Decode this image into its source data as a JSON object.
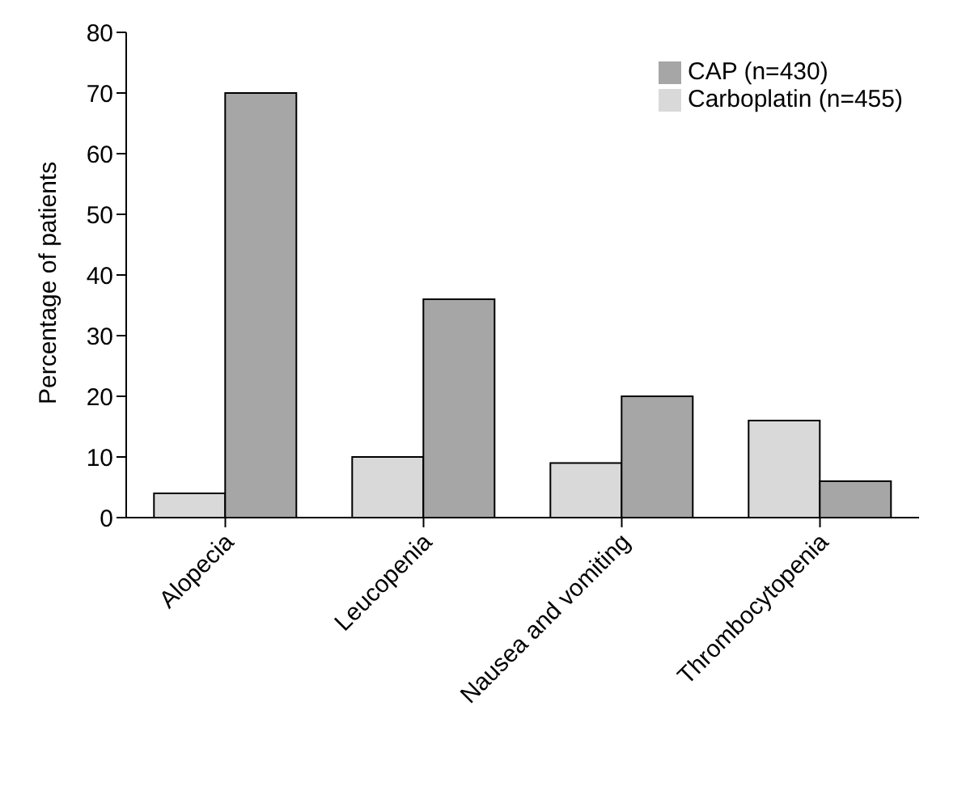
{
  "chart_data": {
    "type": "bar",
    "ylabel": "Percentage of patients",
    "categories": [
      "Alopecia",
      "Leucopenia",
      "Nausea and vomiting",
      "Thrombocytopenia"
    ],
    "series": [
      {
        "name": "Carboplatin (n=455)",
        "color": "#d9d9d9",
        "values": [
          4,
          10,
          9,
          16
        ]
      },
      {
        "name": "CAP (n=430)",
        "color": "#a6a6a6",
        "values": [
          70,
          36,
          20,
          6
        ]
      }
    ],
    "ylim": [
      0,
      80
    ],
    "yticks": [
      0,
      10,
      20,
      30,
      40,
      50,
      60,
      70,
      80
    ],
    "grid": false,
    "legend": "top right"
  }
}
